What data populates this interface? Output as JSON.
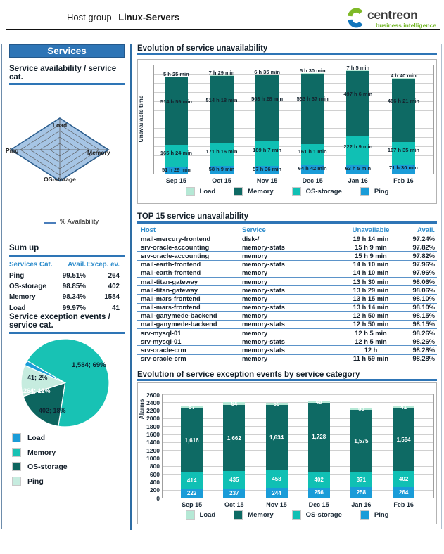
{
  "colors": {
    "accent_blue": "#2e75b6",
    "table_header_blue": "#2f8dcc",
    "dark_text": "#16202b",
    "bar_series": {
      "Load": "#b5e8d5",
      "Memory": "#0e6a64",
      "OS-storage": "#10c0b4",
      "Ping": "#1a9cd8"
    },
    "pie_series": {
      "Load": "#1a9cd8",
      "Memory": "#18c2b4",
      "OS-storage": "#0d655f",
      "Ping": "#c6ecdf"
    },
    "radar_fill": "#a6c5e5",
    "logo_green": "#76b82a",
    "logo_charcoal": "#3a3a3a"
  },
  "header": {
    "title_prefix": "Host group",
    "title_name": "Linux-Servers",
    "logo": {
      "brand": "centreon",
      "tagline": "business intelligence"
    }
  },
  "sidebar": {
    "panel_title": "Services",
    "availability": {
      "title": "Service availability / service cat.",
      "legend_label": "% Availability"
    },
    "sumup": {
      "title": "Sum up",
      "headers": [
        "Services Cat.",
        "Avail.",
        "Excep. ev."
      ],
      "rows": [
        {
          "cat": "Ping",
          "avail": "99.51%",
          "events": "264"
        },
        {
          "cat": "OS-storage",
          "avail": "98.85%",
          "events": "402"
        },
        {
          "cat": "Memory",
          "avail": "98.34%",
          "events": "1584"
        },
        {
          "cat": "Load",
          "avail": "99.97%",
          "events": "41"
        }
      ]
    },
    "exceptions": {
      "title": "Service exception events / service cat."
    }
  },
  "main": {
    "section1_title": "Evolution of service unavailability",
    "section2_title": "TOP 15 service unavailability",
    "section3_title": "Evolution of service exception events by service category",
    "table": {
      "headers": [
        "Host",
        "Service",
        "Unavailable",
        "Avail."
      ],
      "rows": [
        [
          "mail-mercury-frontend",
          "disk-/",
          "19 h 14 min",
          "97.24%"
        ],
        [
          "srv-oracle-accounting",
          "memory-stats",
          "15 h 9 min",
          "97.82%"
        ],
        [
          "srv-oracle-accounting",
          "memory",
          "15 h 9 min",
          "97.82%"
        ],
        [
          "mail-earth-frontend",
          "memory-stats",
          "14 h 10 min",
          "97.96%"
        ],
        [
          "mail-earth-frontend",
          "memory",
          "14 h 10 min",
          "97.96%"
        ],
        [
          "mail-titan-gateway",
          "memory",
          "13 h 30 min",
          "98.06%"
        ],
        [
          "mail-titan-gateway",
          "memory-stats",
          "13 h 29 min",
          "98.06%"
        ],
        [
          "mail-mars-frontend",
          "memory",
          "13 h 15 min",
          "98.10%"
        ],
        [
          "mail-mars-frontend",
          "memory-stats",
          "13 h 14 min",
          "98.10%"
        ],
        [
          "mail-ganymede-backend",
          "memory",
          "12 h 50 min",
          "98.15%"
        ],
        [
          "mail-ganymede-backend",
          "memory-stats",
          "12 h 50 min",
          "98.15%"
        ],
        [
          "srv-mysql-01",
          "memory",
          "12 h 5 min",
          "98.26%"
        ],
        [
          "srv-mysql-01",
          "memory-stats",
          "12 h 5 min",
          "98.26%"
        ],
        [
          "srv-oracle-crm",
          "memory-stats",
          "12 h",
          "98.28%"
        ],
        [
          "srv-oracle-crm",
          "memory",
          "11 h 59 min",
          "98.28%"
        ]
      ]
    }
  },
  "chart_data": [
    {
      "id": "availability_radar",
      "type": "radar",
      "title": "Service availability / service cat.",
      "axes": [
        "Load",
        "Memory",
        "OS-storage",
        "Ping"
      ],
      "values": [
        99.97,
        98.34,
        98.85,
        99.51
      ],
      "scale": [
        0,
        100
      ],
      "legend": [
        "% Availability"
      ]
    },
    {
      "id": "service_unavailability_stacked_bar",
      "type": "bar",
      "stacked": true,
      "stack_order": "bottom_to_top",
      "title": "Evolution of service unavailability",
      "ylabel": "Unavailable time",
      "unit": "hours",
      "ylim": [
        0,
        830
      ],
      "grid": true,
      "categories": [
        "Sep 15",
        "Oct 15",
        "Nov 15",
        "Dec 15",
        "Jan 16",
        "Feb 16"
      ],
      "series": [
        {
          "name": "Ping",
          "values": [
            51.48,
            58.15,
            57.6,
            64.7,
            63.08,
            71.5
          ],
          "labels": [
            "51 h 29 min",
            "58 h 9 min",
            "57 h 36 min",
            "64 h 42 min",
            "63 h 5 min",
            "71 h 30 min"
          ]
        },
        {
          "name": "OS-storage",
          "values": [
            165.4,
            171.27,
            189.12,
            161.02,
            222.15,
            167.58
          ],
          "labels": [
            "165 h 24 min",
            "171 h 16 min",
            "189 h 7 min",
            "161 h 1 min",
            "222 h 9 min",
            "167 h 35 min"
          ]
        },
        {
          "name": "Memory",
          "values": [
            514.98,
            514.3,
            503.47,
            533.62,
            497.1,
            486.35
          ],
          "labels": [
            "514 h 59 min",
            "514 h 18 min",
            "503 h 28 min",
            "533 h 37 min",
            "497 h 6 min",
            "486 h 21 min"
          ]
        },
        {
          "name": "Load",
          "values": [
            5.42,
            7.48,
            6.58,
            5.5,
            7.08,
            4.67
          ],
          "labels": [
            "5 h 25 min",
            "7 h 29 min",
            "6 h 35 min",
            "5 h 30 min",
            "7 h 5 min",
            "4 h 40 min"
          ]
        }
      ],
      "legend_order": [
        "Load",
        "Memory",
        "OS-storage",
        "Ping"
      ],
      "legend_position": "bottom"
    },
    {
      "id": "service_exception_events_pie",
      "type": "pie",
      "title": "Service exception events / service cat.",
      "slices": [
        {
          "name": "Memory",
          "value": 1584,
          "pct": 69,
          "label": "1,584; 69%"
        },
        {
          "name": "OS-storage",
          "value": 402,
          "pct": 18,
          "label": "402; 18%"
        },
        {
          "name": "Ping",
          "value": 264,
          "pct": 12,
          "label": "264; 12%"
        },
        {
          "name": "Load",
          "value": 41,
          "pct": 2,
          "label": "41; 2%"
        }
      ],
      "legend_order": [
        "Load",
        "Memory",
        "OS-storage",
        "Ping"
      ],
      "legend_position": "bottom-left"
    },
    {
      "id": "service_exception_events_stacked_bar",
      "type": "bar",
      "stacked": true,
      "stack_order": "bottom_to_top",
      "title": "Evolution of service exception events by service category",
      "ylabel": "Alarms",
      "ylim": [
        0,
        2600
      ],
      "yticks": [
        0,
        200,
        400,
        600,
        800,
        1000,
        1200,
        1400,
        1600,
        1800,
        2000,
        2200,
        2400,
        2600
      ],
      "grid": true,
      "categories": [
        "Sep 15",
        "Oct 15",
        "Nov 15",
        "Dec 15",
        "Jan 16",
        "Feb 16"
      ],
      "series": [
        {
          "name": "Ping",
          "values": [
            222,
            237,
            244,
            256,
            258,
            264
          ],
          "labels": [
            "222",
            "237",
            "244",
            "256",
            "258",
            "264"
          ]
        },
        {
          "name": "OS-storage",
          "values": [
            414,
            435,
            458,
            402,
            371,
            402
          ],
          "labels": [
            "414",
            "435",
            "458",
            "402",
            "371",
            "402"
          ]
        },
        {
          "name": "Memory",
          "values": [
            1616,
            1662,
            1634,
            1728,
            1575,
            1584
          ],
          "labels": [
            "1,616",
            "1,662",
            "1,634",
            "1,728",
            "1,575",
            "1,584"
          ]
        },
        {
          "name": "Load",
          "values": [
            57,
            64,
            59,
            48,
            65,
            41
          ],
          "labels": [
            "57",
            "64",
            "59",
            "48",
            "65",
            "41"
          ]
        }
      ],
      "legend_order": [
        "Load",
        "Memory",
        "OS-storage",
        "Ping"
      ],
      "legend_position": "bottom"
    }
  ]
}
